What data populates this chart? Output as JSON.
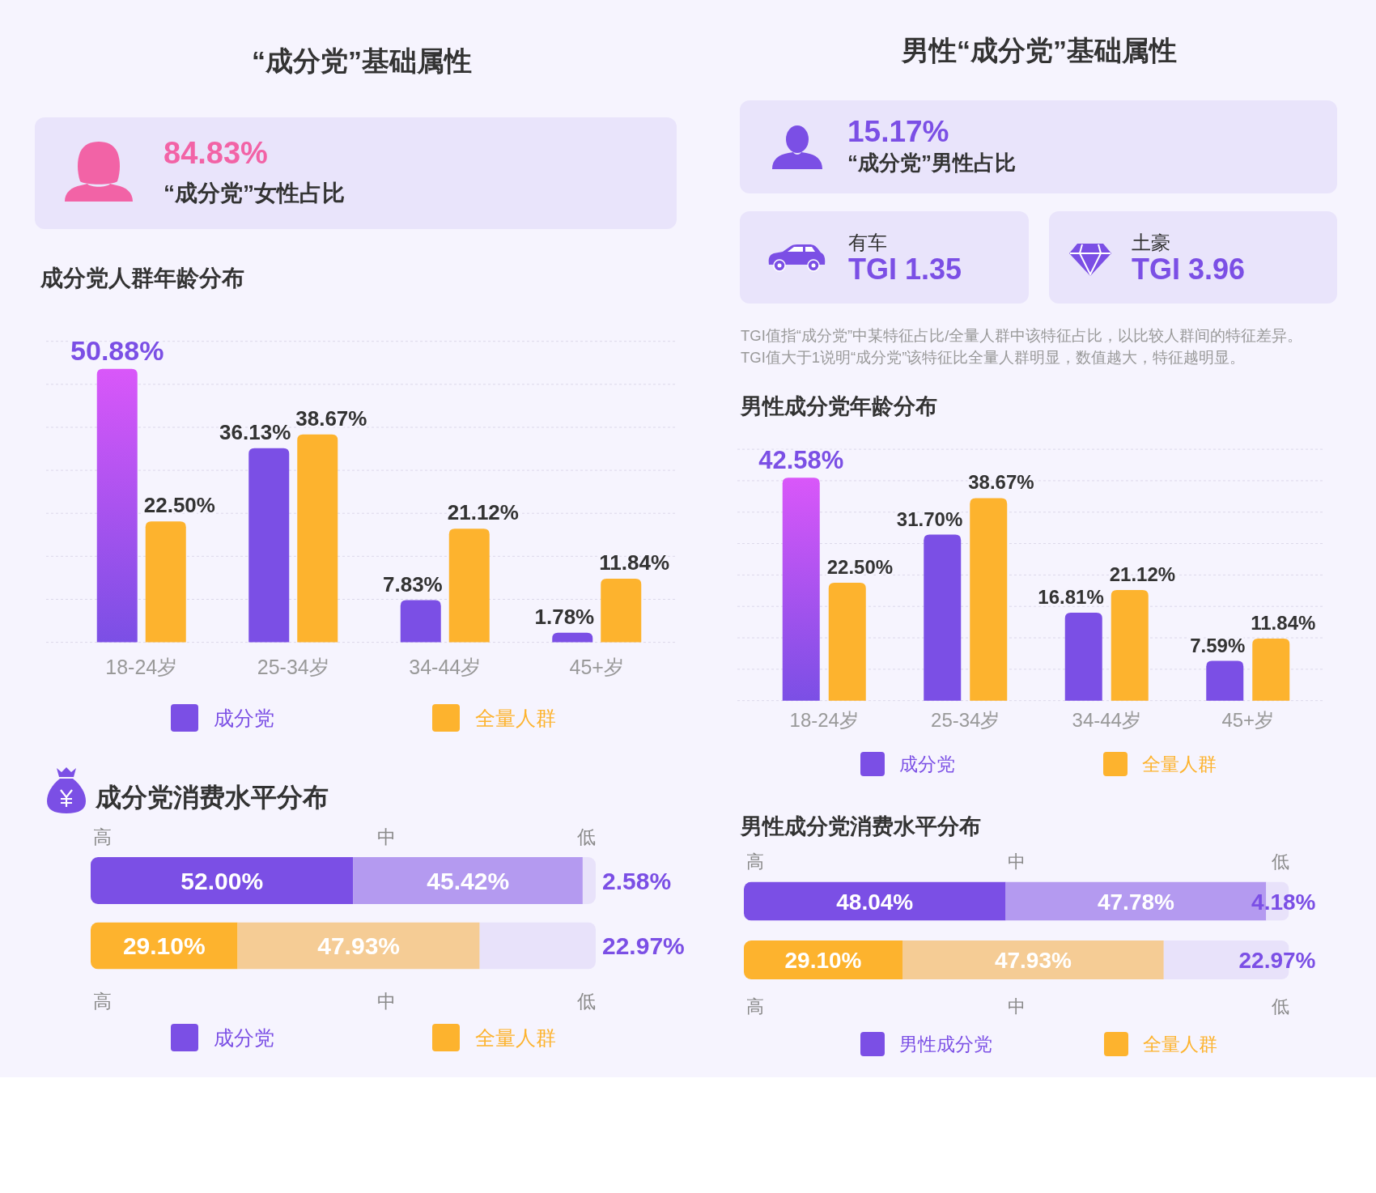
{
  "chart_data": [
    {
      "type": "other",
      "title": "“成分党”基础属性",
      "annotations": [
        "84.83%",
        "“成分党”女性占比"
      ]
    },
    {
      "type": "bar",
      "title": "成分党人群年龄分布",
      "categories": [
        "18-24岁",
        "25-34岁",
        "34-44岁",
        "45+岁"
      ],
      "series": [
        {
          "name": "成分党",
          "color": "#7b4fe5",
          "colors": [
            "#d957f9",
            "#7b4fe5",
            "#7b4fe5",
            "#7b4fe5"
          ],
          "values": [
            50.88,
            36.13,
            7.83,
            1.78
          ],
          "value_labels": [
            "50.88%",
            "36.13%",
            "7.83%",
            "1.78%"
          ]
        },
        {
          "name": "全量人群",
          "color": "#fdb32e",
          "values": [
            22.5,
            38.67,
            21.12,
            11.84
          ],
          "value_labels": [
            "22.50%",
            "38.67%",
            "21.12%",
            "11.84%"
          ]
        }
      ],
      "ylim": [
        0,
        56
      ],
      "yticks": [
        {
          "value": 0,
          "label": null
        },
        {
          "value": 8,
          "label": null
        },
        {
          "value": 16,
          "label": null
        },
        {
          "value": 24,
          "label": null
        },
        {
          "value": 32,
          "label": null
        },
        {
          "value": 40,
          "label": null
        },
        {
          "value": 48,
          "label": null
        },
        {
          "value": 56,
          "label": null
        }
      ],
      "tick_labels": "x",
      "grid": "y",
      "legend": "bottom"
    },
    {
      "type": "bar",
      "orientation": "horizontal",
      "stacked": true,
      "title": "成分党消费水平分布",
      "categories": [
        null,
        null
      ],
      "series": [
        {
          "name": "高",
          "colors": [
            "#7b4fe5",
            "#fdb32e"
          ],
          "values": [
            52.0,
            29.1
          ],
          "value_labels": [
            "52.00%",
            "29.10%"
          ]
        },
        {
          "name": "中",
          "colors": [
            "#b49af0",
            "#f5cc95"
          ],
          "values": [
            45.42,
            47.93
          ],
          "value_labels": [
            "45.42%",
            "47.93%"
          ]
        },
        {
          "name": "低",
          "colors": [
            "#e8e2fa",
            "#e8e2fa"
          ],
          "values": [
            2.58,
            22.97
          ],
          "value_labels": [
            "2.58%",
            "22.97%"
          ]
        }
      ],
      "xlim": [
        0,
        100
      ],
      "legend": "top",
      "annotations": [
        "成分党",
        "全量人群"
      ]
    },
    {
      "type": "other",
      "title": "男性“成分党”基础属性",
      "annotations": [
        "15.17%",
        "“成分党”男性占比",
        "有车",
        "TGI 1.35",
        "土豪",
        "TGI 3.96",
        "TGI值指“成分党”中某特征占比/全量人群中该特征占比，以比较人群间的特征差异。",
        "TGI值大于1说明“成分党”该特征比全量人群明显，数值越大，特征越明显。"
      ]
    },
    {
      "type": "bar",
      "title": "男性成分党年龄分布",
      "categories": [
        "18-24岁",
        "25-34岁",
        "34-44岁",
        "45+岁"
      ],
      "series": [
        {
          "name": "成分党",
          "color": "#7b4fe5",
          "colors": [
            "#d957f9",
            "#7b4fe5",
            "#7b4fe5",
            "#7b4fe5"
          ],
          "values": [
            42.58,
            31.7,
            16.81,
            7.59
          ],
          "value_labels": [
            "42.58%",
            "31.70%",
            "16.81%",
            "7.59%"
          ]
        },
        {
          "name": "全量人群",
          "color": "#fdb32e",
          "values": [
            22.5,
            38.67,
            21.12,
            11.84
          ],
          "value_labels": [
            "22.50%",
            "38.67%",
            "21.12%",
            "11.84%"
          ]
        }
      ],
      "ylim": [
        0,
        48
      ],
      "yticks": [
        {
          "value": 0,
          "label": null
        },
        {
          "value": 6,
          "label": null
        },
        {
          "value": 12,
          "label": null
        },
        {
          "value": 18,
          "label": null
        },
        {
          "value": 24,
          "label": null
        },
        {
          "value": 30,
          "label": null
        },
        {
          "value": 36,
          "label": null
        },
        {
          "value": 42,
          "label": null
        },
        {
          "value": 48,
          "label": null
        }
      ],
      "tick_labels": "x",
      "grid": "y",
      "legend": "bottom"
    },
    {
      "type": "bar",
      "orientation": "horizontal",
      "stacked": true,
      "title": "男性成分党消费水平分布",
      "categories": [
        null,
        null
      ],
      "series": [
        {
          "name": "高",
          "colors": [
            "#7b4fe5",
            "#fdb32e"
          ],
          "values": [
            48.04,
            29.1
          ],
          "value_labels": [
            "48.04%",
            "29.10%"
          ]
        },
        {
          "name": "中",
          "colors": [
            "#b49af0",
            "#f5cc95"
          ],
          "values": [
            47.78,
            47.93
          ],
          "value_labels": [
            "47.78%",
            "47.93%"
          ]
        },
        {
          "name": "低",
          "colors": [
            "#e8e2fa",
            "#e8e2fa"
          ],
          "values": [
            4.18,
            22.97
          ],
          "value_labels": [
            "4.18%",
            "22.97%"
          ]
        }
      ],
      "xlim": [
        0,
        100
      ],
      "legend": "top",
      "annotations": [
        "男性成分党",
        "全量人群"
      ]
    }
  ]
}
